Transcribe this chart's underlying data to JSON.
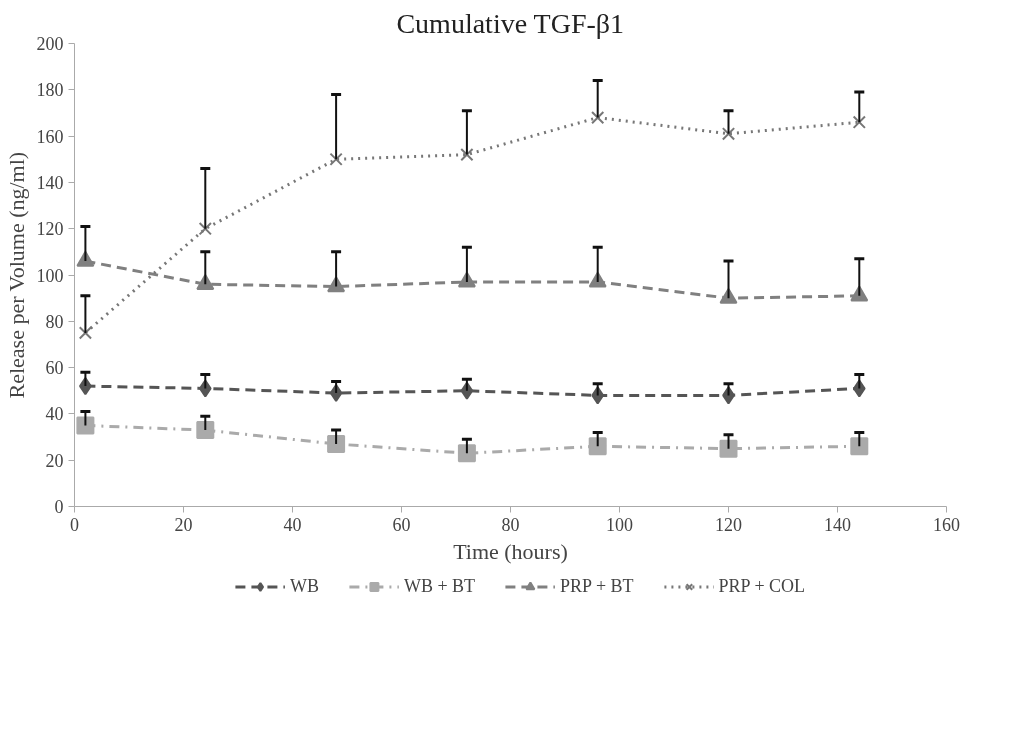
{
  "chart_data": {
    "type": "line",
    "title": "Cumulative TGF-β1",
    "xlabel": "Time (hours)",
    "ylabel": "Release per Volume (ng/ml)",
    "x": [
      2,
      24,
      48,
      72,
      96,
      120,
      144
    ],
    "xlim": [
      0,
      160
    ],
    "xticks": [
      0,
      20,
      40,
      60,
      80,
      100,
      120,
      140,
      160
    ],
    "ylim": [
      0,
      200
    ],
    "yticks": [
      0,
      20,
      40,
      60,
      80,
      100,
      120,
      140,
      160,
      180,
      200
    ],
    "grid": false,
    "legend": "bottom",
    "series": [
      {
        "name": "WB",
        "color": "#555555",
        "marker": "diamond",
        "line_style": "dashed",
        "values": [
          52,
          51,
          49,
          50,
          48,
          48,
          51
        ],
        "errors": [
          [
            52,
            58
          ],
          [
            51,
            57
          ],
          [
            49,
            54
          ],
          [
            50,
            55
          ],
          [
            48,
            53
          ],
          [
            48,
            53
          ],
          [
            51,
            57
          ]
        ]
      },
      {
        "name": "WB + BT",
        "color": "#aaaaaa",
        "marker": "square",
        "line_style": "dashdot",
        "values": [
          35,
          33,
          27,
          23,
          26,
          25,
          26
        ],
        "errors": [
          [
            35,
            41
          ],
          [
            33,
            39
          ],
          [
            27,
            33
          ],
          [
            23,
            29
          ],
          [
            26,
            32
          ],
          [
            25,
            31
          ],
          [
            26,
            32
          ]
        ]
      },
      {
        "name": "PRP + BT",
        "color": "#808080",
        "marker": "triangle",
        "line_style": "dashed",
        "values": [
          106,
          96,
          95,
          97,
          97,
          90,
          91
        ],
        "errors": [
          [
            106,
            121
          ],
          [
            96,
            110
          ],
          [
            95,
            110
          ],
          [
            97,
            112
          ],
          [
            97,
            112
          ],
          [
            90,
            106
          ],
          [
            91,
            107
          ]
        ]
      },
      {
        "name": "PRP + COL",
        "color": "#777777",
        "marker": "cross",
        "line_style": "dotted",
        "values": [
          75,
          120,
          150,
          152,
          168,
          161,
          166
        ],
        "errors": [
          [
            75,
            91
          ],
          [
            120,
            146
          ],
          [
            150,
            178
          ],
          [
            152,
            171
          ],
          [
            168,
            184
          ],
          [
            161,
            171
          ],
          [
            166,
            179
          ]
        ]
      }
    ]
  }
}
